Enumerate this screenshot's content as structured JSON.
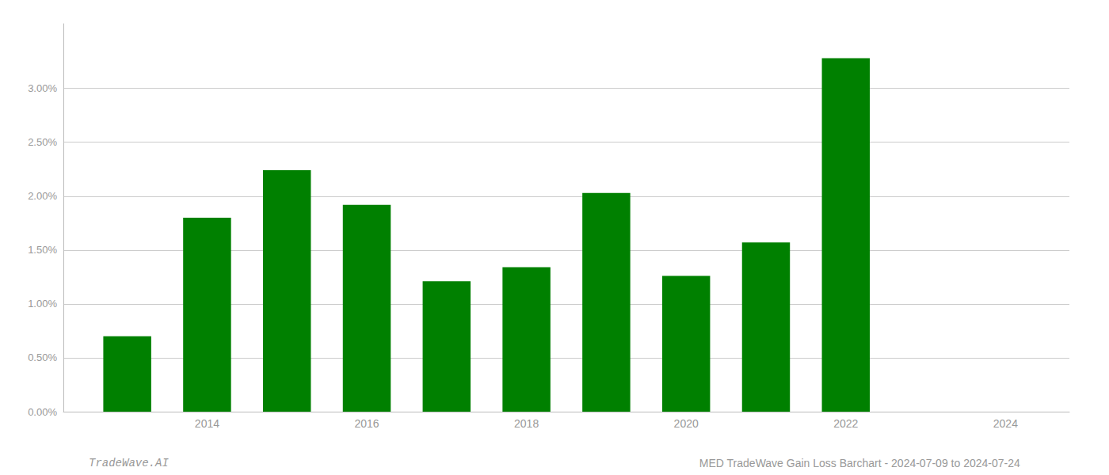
{
  "chart_data": {
    "type": "bar",
    "x": [
      2013,
      2014,
      2015,
      2016,
      2017,
      2018,
      2019,
      2020,
      2021,
      2022
    ],
    "values": [
      0.007,
      0.018,
      0.0224,
      0.0192,
      0.0121,
      0.0134,
      0.0203,
      0.0126,
      0.0157,
      0.0328
    ],
    "color": "#008000",
    "xlim": [
      2012.2,
      2024.8
    ],
    "xticks": [
      2014,
      2016,
      2018,
      2020,
      2022,
      2024
    ],
    "ylim": [
      0,
      0.036
    ],
    "yticks": [
      {
        "value": 0.0,
        "label": "0.00%"
      },
      {
        "value": 0.005,
        "label": "0.50%"
      },
      {
        "value": 0.01,
        "label": "1.00%"
      },
      {
        "value": 0.015,
        "label": "1.50%"
      },
      {
        "value": 0.02,
        "label": "2.00%"
      },
      {
        "value": 0.025,
        "label": "2.50%"
      },
      {
        "value": 0.03,
        "label": "3.00%"
      }
    ],
    "grid": true,
    "annotations": [
      "TradeWave.AI",
      "MED TradeWave Gain Loss Barchart - 2024-07-09 to 2024-07-24"
    ]
  }
}
